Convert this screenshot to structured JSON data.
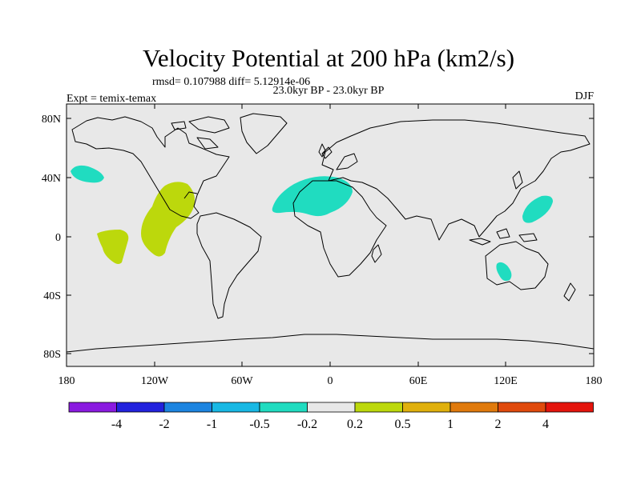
{
  "title": "Velocity Potential at 200 hPa (km2/s)",
  "stats": "rmsd= 0.107988 diff= 5.12914e-06",
  "period": "23.0kyr BP - 23.0kyr BP",
  "left_label": "Expt = temix-temax",
  "right_label": "DJF",
  "axes": {
    "lat_ticks": [
      "80N",
      "40N",
      "0",
      "40S",
      "80S"
    ],
    "lon_ticks": [
      "180",
      "120W",
      "60W",
      "0",
      "60E",
      "120E",
      "180"
    ]
  },
  "colorbar": {
    "colors": [
      "#8a1ae0",
      "#2222dd",
      "#1c84e0",
      "#18b8e4",
      "#20dcc0",
      "#e8e8e8",
      "#bcd80c",
      "#e0b00c",
      "#e07a0c",
      "#e04a0c",
      "#e4140c"
    ],
    "labels": [
      "-4",
      "-2",
      "-1",
      "-0.5",
      "-0.2",
      "0.2",
      "0.5",
      "1",
      "2",
      "4"
    ]
  },
  "map": {
    "background": "#e8e8e8",
    "features": [
      {
        "name": "central-north-pacific-negative-anomaly",
        "fill": "#20dcc0"
      },
      {
        "name": "north-africa-negative-anomaly",
        "fill": "#20dcc0"
      },
      {
        "name": "western-pacific-negative-anomaly",
        "fill": "#20dcc0"
      },
      {
        "name": "australia-negative-anomaly",
        "fill": "#20dcc0"
      },
      {
        "name": "eastern-pacific-positive-anomaly",
        "fill": "#bcd80c"
      },
      {
        "name": "central-pacific-positive-anomaly",
        "fill": "#bcd80c"
      }
    ]
  }
}
